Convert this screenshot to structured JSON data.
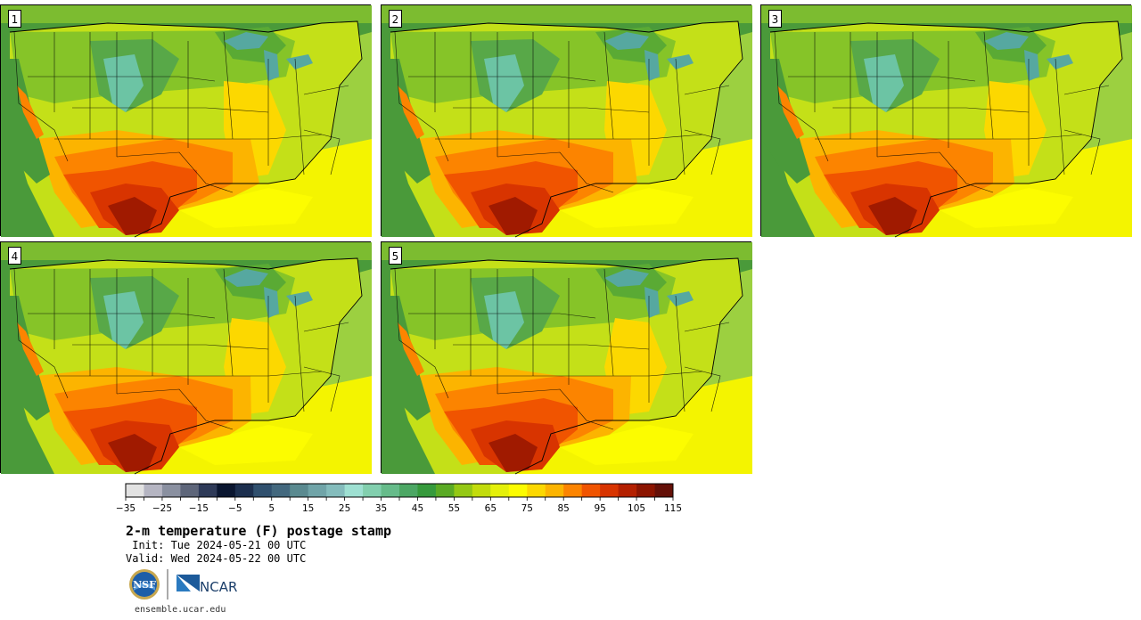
{
  "figure": {
    "title": "2-m temperature (F) postage stamp",
    "init": " Init: Tue 2024-05-21 00 UTC",
    "valid": "Valid: Wed 2024-05-22 00 UTC",
    "url": "ensemble.ucar.edu",
    "logos": {
      "nsf": "NSF",
      "ncar": "NCAR"
    }
  },
  "panels": [
    {
      "label": "1"
    },
    {
      "label": "2"
    },
    {
      "label": "3"
    },
    {
      "label": "4"
    },
    {
      "label": "5"
    }
  ],
  "colorbar": {
    "colors": [
      "#e2e2e2",
      "#b5b5c2",
      "#8a90a0",
      "#5e667a",
      "#2e3a58",
      "#0a1630",
      "#1c2f4e",
      "#30506e",
      "#43687e",
      "#5a8a90",
      "#70a4a8",
      "#84bcbc",
      "#9ee0d2",
      "#82cfae",
      "#66bb8a",
      "#4ca764",
      "#369a3c",
      "#5aaa24",
      "#94c814",
      "#c2dc0c",
      "#e4f00a",
      "#fcfc00",
      "#fcd800",
      "#fcb400",
      "#fc8400",
      "#f05400",
      "#d83400",
      "#b42000",
      "#8c1400",
      "#641008"
    ],
    "ticks": [
      "−35",
      "−25",
      "−15",
      "−5",
      "5",
      "15",
      "25",
      "35",
      "45",
      "55",
      "65",
      "75",
      "85",
      "95",
      "105",
      "115"
    ]
  }
}
